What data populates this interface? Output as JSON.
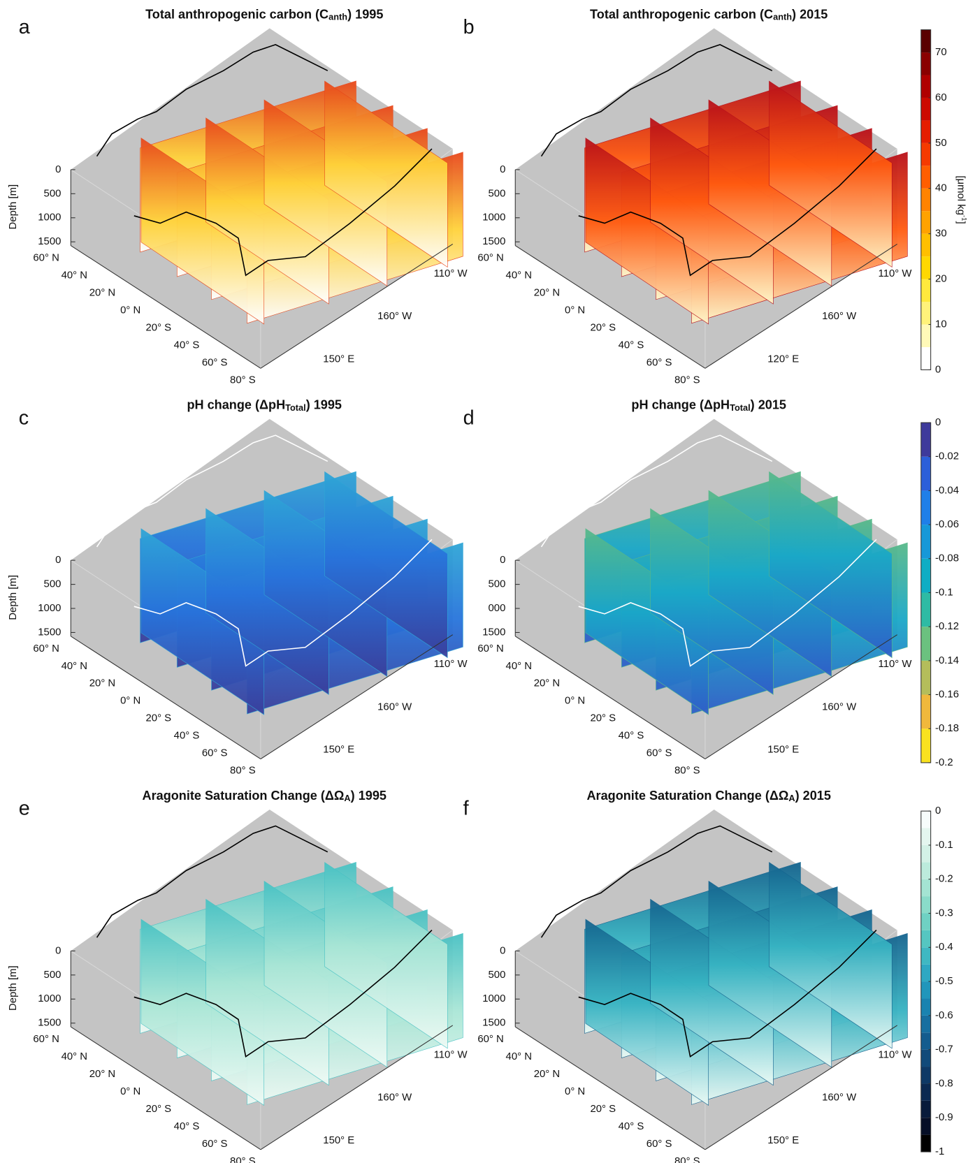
{
  "panels": [
    {
      "letter": "a",
      "title": {
        "pre": "Total anthropogenic carbon (C",
        "sub": "anth",
        "post": ") 1995"
      },
      "depth_label": "Depth [m]",
      "dlim": [
        0,
        1500
      ],
      "depth_ticks": [
        0,
        500,
        1000,
        1500
      ],
      "lat_labels": [
        "60° N",
        "40° N",
        "20° N",
        "0° N",
        "20° S",
        "40° S",
        "60° S",
        "80° S"
      ],
      "lon_labels": [
        "110° W",
        "160° W",
        "150° E"
      ]
    },
    {
      "letter": "b",
      "title": {
        "pre": "Total anthropogenic carbon (C",
        "sub": "anth",
        "post": ") 2015"
      },
      "dlim": [
        0,
        1500
      ],
      "depth_ticks": [
        0,
        500,
        1000,
        1500
      ],
      "lat_labels": [
        "60° N",
        "40° N",
        "20° N",
        "0° N",
        "20° S",
        "40° S",
        "60° S",
        "80° S"
      ],
      "lon_labels": [
        "110° W",
        "160° W",
        "120° E"
      ]
    },
    {
      "letter": "c",
      "title": {
        "pre": "pH change (ΔpH",
        "sub": "Total",
        "post": ") 1995"
      },
      "depth_label": "Depth [m]",
      "dlim": [
        0,
        1500
      ],
      "depth_ticks": [
        0,
        500,
        1000,
        1500
      ],
      "lat_labels": [
        "60° N",
        "40° N",
        "20° N",
        "0° N",
        "20° S",
        "40° S",
        "60° S",
        "80° S"
      ],
      "lon_labels": [
        "110° W",
        "160° W",
        "150° E"
      ]
    },
    {
      "letter": "d",
      "title": {
        "pre": "pH change (ΔpH",
        "sub": "Total",
        "post": ") 2015"
      },
      "dlim": [
        0,
        1500
      ],
      "depth_ticks": [
        0,
        500,
        {
          "value": 1000,
          "label": "000"
        },
        1500
      ],
      "lat_labels": [
        "60° N",
        "40° N",
        "20° N",
        "0° N",
        "20° S",
        "40° S",
        "60° S",
        "80° S"
      ],
      "lon_labels": [
        "110° W",
        "160° W",
        "150° E"
      ]
    },
    {
      "letter": "e",
      "title": {
        "pre": "Aragonite Saturation Change (ΔΩ",
        "sub": "A",
        "post": ") 1995"
      },
      "depth_label": "Depth [m]",
      "dlim": [
        0,
        1500
      ],
      "depth_ticks": [
        0,
        500,
        1000,
        1500
      ],
      "lat_labels": [
        "60° N",
        "40° N",
        "20° N",
        "0° N",
        "20° S",
        "40° S",
        "60° S",
        "80° S"
      ],
      "lon_labels": [
        "110° W",
        "160° W",
        "150° E"
      ]
    },
    {
      "letter": "f",
      "title": {
        "pre": "Aragonite Saturation Change (ΔΩ",
        "sub": "A",
        "post": ") 2015"
      },
      "dlim": [
        0,
        1500
      ],
      "depth_ticks": [
        0,
        500,
        1000,
        1500
      ],
      "lat_labels": [
        "60° N",
        "40° N",
        "20° N",
        "0° N",
        "20° S",
        "40° S",
        "60° S",
        "80° S"
      ],
      "lon_labels": [
        "110° W",
        "160° W",
        "150° E"
      ]
    }
  ],
  "colorbars": [
    {
      "lim": [
        0,
        75
      ],
      "ticks": [
        0,
        10,
        20,
        30,
        40,
        50,
        60,
        70
      ],
      "label": {
        "pre": "[μmol kg",
        "sup": "-1",
        "post": "]"
      },
      "colors": [
        "#ffffff",
        "#fff9b8",
        "#fff27a",
        "#ffe93d",
        "#ffd800",
        "#ffbf00",
        "#ffa200",
        "#ff8300",
        "#ff5e00",
        "#f53a00",
        "#e51e00",
        "#cc0a00",
        "#b00000",
        "#8a0000",
        "#5a0000"
      ]
    },
    {
      "lim": [
        -0.2,
        0
      ],
      "ticks": [
        0,
        -0.02,
        -0.04,
        -0.06,
        -0.08,
        -0.1,
        -0.12,
        -0.14,
        -0.16,
        -0.18,
        -0.2
      ],
      "colors": [
        "#f9e21f",
        "#f0b83c",
        "#b4bd5b",
        "#6bc17f",
        "#2ebba4",
        "#0fadc4",
        "#1698d8",
        "#1f7fe8",
        "#2c5fd9",
        "#3e3a9b"
      ]
    },
    {
      "lim": [
        -1,
        0
      ],
      "ticks": [
        0,
        -0.1,
        -0.2,
        -0.3,
        -0.4,
        -0.5,
        -0.6,
        -0.7,
        -0.8,
        -0.9,
        -1
      ],
      "colors": [
        "#000000",
        "#050e26",
        "#081b3b",
        "#0b2951",
        "#0e3966",
        "#114a7a",
        "#145c8e",
        "#176fa0",
        "#1a83b0",
        "#2196bb",
        "#2ea8c2",
        "#3fb8c2",
        "#55c6c1",
        "#6fd1c3",
        "#8adbc9",
        "#a4e4d3",
        "#bcebdc",
        "#d3f1e6",
        "#e4f6ef",
        "#f7fcfb"
      ]
    }
  ]
}
